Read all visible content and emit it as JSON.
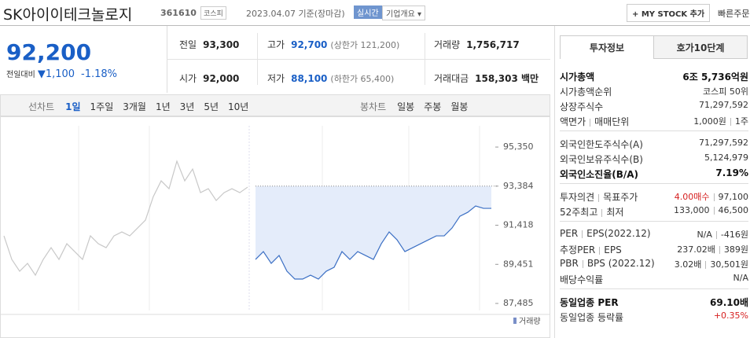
{
  "header": {
    "title": "SK아이이테크놀로지",
    "code": "361610",
    "market": "코스피",
    "date": "2023.04.07 기준(장마감)",
    "realtime": "실시간",
    "company": "기업개요",
    "mystock": "+ MY STOCK 추가",
    "quick_order": "빠른주문"
  },
  "price": {
    "current": "92,200",
    "change_label": "전일대비",
    "change": "1,100",
    "change_rate": "-1.18%"
  },
  "summary": [
    [
      {
        "label": "전일",
        "value": "93,300"
      },
      {
        "label": "고가",
        "value": "92,700",
        "note": "(상한가 121,200)"
      },
      {
        "label": "거래량",
        "value": "1,756,717"
      }
    ],
    [
      {
        "label": "시가",
        "value": "92,000"
      },
      {
        "label": "저가",
        "value": "88,100",
        "note": "(하한가 65,400)"
      },
      {
        "label": "거래대금",
        "value": "158,303 백만"
      }
    ]
  ],
  "tabs": {
    "line_label": "선차트",
    "line": [
      "1일",
      "1주일",
      "3개월",
      "1년",
      "3년",
      "5년",
      "10년"
    ],
    "candle_label": "봉차트",
    "candle": [
      "일봉",
      "주봉",
      "월봉"
    ]
  },
  "chart_data": {
    "type": "line",
    "ylim": [
      87130,
      96420
    ],
    "yticks": [
      {
        "value": 95350,
        "label": "95,350"
      },
      {
        "value": 93384,
        "label": "93,384"
      },
      {
        "value": 91418,
        "label": "91,418"
      },
      {
        "value": 89451,
        "label": "89,451"
      },
      {
        "value": 87485,
        "label": "87,485"
      }
    ],
    "volume_label": "거래량",
    "series": [
      {
        "color": "#c8c8c8",
        "values": [
          90884,
          89698,
          89105,
          89500,
          88907,
          89698,
          90290,
          89698,
          90488,
          90093,
          89698,
          90884,
          90488,
          90290,
          90884,
          91081,
          90884,
          91279,
          91674,
          92860,
          93650,
          93255,
          94638,
          93650,
          94243,
          93057,
          93255,
          92662,
          93057,
          93255,
          93057,
          93334,
          null,
          null,
          null,
          null,
          null,
          null,
          null,
          null,
          null,
          null,
          null,
          null,
          null,
          null,
          null,
          null,
          null,
          null,
          null,
          null,
          null,
          null,
          null,
          null,
          null,
          null,
          null,
          null,
          null,
          null,
          null
        ]
      },
      {
        "color": "#3b6fc4",
        "area": "#e4ecfa",
        "values": [
          null,
          null,
          null,
          null,
          null,
          null,
          null,
          null,
          null,
          null,
          null,
          null,
          null,
          null,
          null,
          null,
          null,
          null,
          null,
          null,
          null,
          null,
          null,
          null,
          null,
          null,
          null,
          null,
          null,
          null,
          null,
          null,
          89698,
          90093,
          89500,
          89896,
          89105,
          88710,
          88710,
          88907,
          88710,
          89105,
          89302,
          90093,
          89698,
          90093,
          89896,
          89698,
          90488,
          91081,
          90686,
          90093,
          90290,
          90488,
          90686,
          90884,
          90884,
          91279,
          91872,
          92069,
          92386,
          92267,
          92267
        ]
      }
    ]
  },
  "info": {
    "tabs": [
      "투자정보",
      "호가10단계"
    ],
    "sections": [
      [
        {
          "labels": [
            "시가총액"
          ],
          "values": [
            "6조 5,736억원"
          ],
          "bold": true
        },
        {
          "labels": [
            "시가총액순위"
          ],
          "values": [
            "코스피 50위"
          ]
        },
        {
          "labels": [
            "상장주식수"
          ],
          "values": [
            "71,297,592"
          ]
        },
        {
          "labels": [
            "액면가",
            "매매단위"
          ],
          "values": [
            "1,000원",
            "1주"
          ]
        }
      ],
      [
        {
          "labels": [
            "외국인한도주식수(A)"
          ],
          "values": [
            "71,297,592"
          ]
        },
        {
          "labels": [
            "외국인보유주식수(B)"
          ],
          "values": [
            "5,124,979"
          ]
        },
        {
          "labels": [
            "외국인소진율(B/A)"
          ],
          "values": [
            "7.19%"
          ],
          "bold": true
        }
      ],
      [
        {
          "labels": [
            "투자의견",
            "목표주가"
          ],
          "values": [
            "4.00매수",
            "97,100"
          ]
        },
        {
          "labels": [
            "52주최고",
            "최저"
          ],
          "values": [
            "133,000",
            "46,500"
          ]
        }
      ],
      [
        {
          "labels": [
            "PER",
            "EPS(2022.12)"
          ],
          "values": [
            "N/A",
            "-416원"
          ]
        },
        {
          "labels": [
            "추정PER",
            "EPS"
          ],
          "values": [
            "237.02배",
            "389원"
          ]
        },
        {
          "labels": [
            "PBR",
            "BPS (2022.12)"
          ],
          "values": [
            "3.02배",
            "30,501원"
          ]
        },
        {
          "labels": [
            "배당수익률"
          ],
          "values": [
            "N/A"
          ]
        }
      ],
      [
        {
          "labels": [
            "동일업종 PER"
          ],
          "values": [
            "69.10배"
          ],
          "bold": true
        },
        {
          "labels": [
            "동일업종 등락률"
          ],
          "values": [
            "+0.35%"
          ]
        }
      ]
    ]
  }
}
